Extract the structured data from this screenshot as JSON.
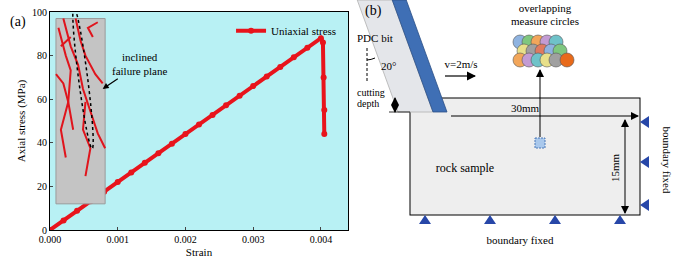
{
  "chart_data": {
    "type": "line",
    "panel_label": "(a)",
    "x_label": "Strain",
    "y_label": "Axial stress (MPa)",
    "x": [
      0,
      0.0002,
      0.0004,
      0.0006,
      0.0008,
      0.001,
      0.0012,
      0.0014,
      0.0016,
      0.0018,
      0.002,
      0.0022,
      0.0024,
      0.0026,
      0.0028,
      0.003,
      0.0032,
      0.0034,
      0.0036,
      0.0038,
      0.004,
      0.00403,
      0.00404,
      0.00405,
      0.00405
    ],
    "series": [
      {
        "name": "Uniaxial stress",
        "color": "#e8141c",
        "marker": "circle",
        "line_style": "solid",
        "values": [
          0,
          4.4,
          8.8,
          13.2,
          17.6,
          22,
          26.4,
          30.8,
          35.2,
          39.6,
          44,
          48.4,
          52.8,
          57.2,
          61.6,
          66,
          70.4,
          74.8,
          79.2,
          83.6,
          88,
          86,
          70,
          55,
          44
        ]
      }
    ],
    "xlim": [
      0,
      0.0044
    ],
    "ylim": [
      0,
      100
    ],
    "xticks": [
      {
        "value": 0,
        "label": "0.000"
      },
      {
        "value": 0.001,
        "label": "0.001"
      },
      {
        "value": 0.002,
        "label": "0.002"
      },
      {
        "value": 0.003,
        "label": "0.003"
      },
      {
        "value": 0.004,
        "label": "0.004"
      }
    ],
    "yticks": [
      0,
      20,
      40,
      60,
      80,
      100
    ],
    "grid": false,
    "legend": "top right",
    "annotations": [
      {
        "text": [
          "inclined",
          "failure plane"
        ]
      }
    ]
  },
  "diagram": {
    "panel_label": "(b)",
    "bit": {
      "label": "PDC bit",
      "angle": "20°"
    },
    "velocity": "v=2m/s",
    "cutting_depth": [
      "cutting",
      "depth"
    ],
    "measure": [
      "overlapping",
      "measure circles"
    ],
    "sample": {
      "label": "rock sample",
      "width": "30mm",
      "height": "15mm"
    },
    "boundary_right": "boundary fixed",
    "boundary_bottom": "boundary fixed"
  }
}
